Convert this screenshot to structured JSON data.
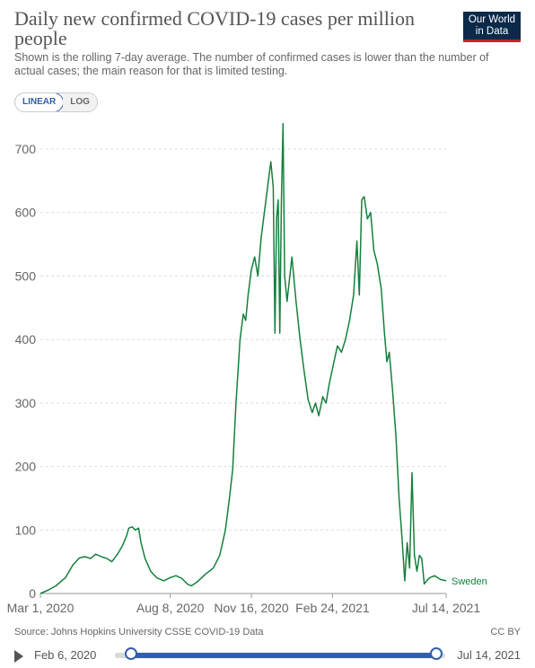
{
  "header": {
    "title": "Daily new confirmed COVID-19 cases per million people",
    "subtitle": "Shown is the rolling 7-day average. The number of confirmed cases is lower than the number of actual cases; the main reason for that is limited testing.",
    "logo_line1": "Our World",
    "logo_line2": "in Data"
  },
  "controls": {
    "linear_label": "LINEAR",
    "log_label": "LOG",
    "selected": "LINEAR"
  },
  "footer": {
    "source": "Source: Johns Hopkins University CSSE COVID-19 Data",
    "license": "CC BY"
  },
  "timeline": {
    "start_label": "Feb 6, 2020",
    "end_label": "Jul 14, 2021"
  },
  "colors": {
    "series": "#15803d",
    "grid": "#dddddd",
    "axis_text": "#666666",
    "accent": "#3360a9"
  },
  "chart_data": {
    "type": "line",
    "x_scale": "date",
    "xlim": [
      "2020-03-01",
      "2021-07-14"
    ],
    "ylim": [
      0,
      700
    ],
    "yticks": [
      0,
      100,
      200,
      300,
      400,
      500,
      600,
      700
    ],
    "xtick_labels": [
      "Mar 1, 2020",
      "Aug 8, 2020",
      "Nov 16, 2020",
      "Feb 24, 2021",
      "Jul 14, 2021"
    ],
    "xtick_dates": [
      "2020-03-01",
      "2020-08-08",
      "2020-11-16",
      "2021-02-24",
      "2021-07-14"
    ],
    "grid": "horizontal",
    "series": [
      {
        "name": "Sweden",
        "points": [
          [
            "2020-03-01",
            0
          ],
          [
            "2020-03-10",
            5
          ],
          [
            "2020-03-20",
            12
          ],
          [
            "2020-04-01",
            25
          ],
          [
            "2020-04-10",
            45
          ],
          [
            "2020-04-18",
            56
          ],
          [
            "2020-04-25",
            58
          ],
          [
            "2020-05-02",
            55
          ],
          [
            "2020-05-08",
            62
          ],
          [
            "2020-05-15",
            58
          ],
          [
            "2020-05-22",
            55
          ],
          [
            "2020-05-28",
            50
          ],
          [
            "2020-06-04",
            62
          ],
          [
            "2020-06-10",
            75
          ],
          [
            "2020-06-15",
            90
          ],
          [
            "2020-06-18",
            103
          ],
          [
            "2020-06-22",
            105
          ],
          [
            "2020-06-26",
            100
          ],
          [
            "2020-06-30",
            103
          ],
          [
            "2020-07-03",
            80
          ],
          [
            "2020-07-08",
            55
          ],
          [
            "2020-07-15",
            35
          ],
          [
            "2020-07-22",
            25
          ],
          [
            "2020-07-31",
            20
          ],
          [
            "2020-08-08",
            25
          ],
          [
            "2020-08-15",
            28
          ],
          [
            "2020-08-22",
            24
          ],
          [
            "2020-08-29",
            15
          ],
          [
            "2020-09-03",
            12
          ],
          [
            "2020-09-10",
            18
          ],
          [
            "2020-09-20",
            30
          ],
          [
            "2020-09-30",
            40
          ],
          [
            "2020-10-08",
            60
          ],
          [
            "2020-10-15",
            100
          ],
          [
            "2020-10-20",
            150
          ],
          [
            "2020-10-24",
            195
          ],
          [
            "2020-10-28",
            300
          ],
          [
            "2020-11-02",
            400
          ],
          [
            "2020-11-06",
            440
          ],
          [
            "2020-11-09",
            430
          ],
          [
            "2020-11-12",
            470
          ],
          [
            "2020-11-16",
            510
          ],
          [
            "2020-11-20",
            530
          ],
          [
            "2020-11-24",
            500
          ],
          [
            "2020-11-28",
            560
          ],
          [
            "2020-12-02",
            600
          ],
          [
            "2020-12-06",
            640
          ],
          [
            "2020-12-10",
            680
          ],
          [
            "2020-12-13",
            640
          ],
          [
            "2020-12-15",
            410
          ],
          [
            "2020-12-17",
            590
          ],
          [
            "2020-12-19",
            620
          ],
          [
            "2020-12-21",
            410
          ],
          [
            "2020-12-23",
            620
          ],
          [
            "2020-12-25",
            740
          ],
          [
            "2020-12-27",
            500
          ],
          [
            "2020-12-30",
            460
          ],
          [
            "2021-01-05",
            530
          ],
          [
            "2021-01-10",
            460
          ],
          [
            "2021-01-15",
            400
          ],
          [
            "2021-01-20",
            350
          ],
          [
            "2021-01-25",
            305
          ],
          [
            "2021-01-30",
            285
          ],
          [
            "2021-02-03",
            300
          ],
          [
            "2021-02-07",
            280
          ],
          [
            "2021-02-12",
            310
          ],
          [
            "2021-02-16",
            300
          ],
          [
            "2021-02-20",
            330
          ],
          [
            "2021-02-25",
            360
          ],
          [
            "2021-03-02",
            390
          ],
          [
            "2021-03-07",
            380
          ],
          [
            "2021-03-12",
            400
          ],
          [
            "2021-03-17",
            430
          ],
          [
            "2021-03-22",
            470
          ],
          [
            "2021-03-26",
            555
          ],
          [
            "2021-03-29",
            470
          ],
          [
            "2021-04-01",
            620
          ],
          [
            "2021-04-04",
            625
          ],
          [
            "2021-04-08",
            590
          ],
          [
            "2021-04-12",
            600
          ],
          [
            "2021-04-16",
            540
          ],
          [
            "2021-04-20",
            520
          ],
          [
            "2021-04-25",
            480
          ],
          [
            "2021-04-29",
            410
          ],
          [
            "2021-05-02",
            365
          ],
          [
            "2021-05-05",
            380
          ],
          [
            "2021-05-09",
            320
          ],
          [
            "2021-05-13",
            250
          ],
          [
            "2021-05-17",
            150
          ],
          [
            "2021-05-21",
            80
          ],
          [
            "2021-05-24",
            20
          ],
          [
            "2021-05-27",
            80
          ],
          [
            "2021-05-30",
            40
          ],
          [
            "2021-06-02",
            190
          ],
          [
            "2021-06-05",
            60
          ],
          [
            "2021-06-08",
            35
          ],
          [
            "2021-06-11",
            60
          ],
          [
            "2021-06-14",
            55
          ],
          [
            "2021-06-17",
            15
          ],
          [
            "2021-06-20",
            20
          ],
          [
            "2021-06-24",
            25
          ],
          [
            "2021-06-30",
            28
          ],
          [
            "2021-07-07",
            22
          ],
          [
            "2021-07-14",
            20
          ]
        ]
      }
    ]
  }
}
